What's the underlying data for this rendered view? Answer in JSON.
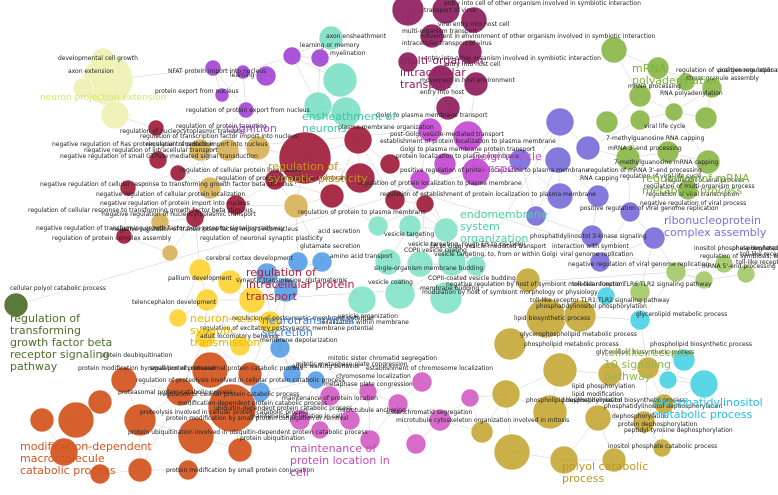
{
  "palette": {
    "edge": "#b9b9b9",
    "dev_growth": "#eef3b4",
    "cognition": "#a347d6",
    "plasticity": "#d9b25a",
    "intracellular": "#a01e3a",
    "multiorganism": "#8e1e5e",
    "ensheathment": "#7fe0c6",
    "golgi": "#c44ad2",
    "endomembrane": "#86e4c8",
    "mrna": "#8cb84a",
    "rnp": "#7a6fdc",
    "tgf": "#4e6e2a",
    "neuron": "#ffd335",
    "secretion": "#5aa0e8",
    "tlr": "#a4c96a",
    "catabolic": "#d3541e",
    "localization": "#d35fc5",
    "lipid": "#c7a93a",
    "pi": "#4ed3e6"
  },
  "clusters": [
    {
      "id": "dev-growth",
      "label": "neuron projection extension",
      "color": "#d9e36a"
    },
    {
      "id": "cognition",
      "label": "cognition",
      "color": "#a347d6"
    },
    {
      "id": "plasticity",
      "label": "regulation of synaptic plasticity",
      "color": "#c9921b"
    },
    {
      "id": "intracellular",
      "label": "regulation of intracellular protein transport",
      "color": "#b11b3a"
    },
    {
      "id": "ensheathment",
      "label": "ensheathment of neurons",
      "color": "#39c9a4"
    },
    {
      "id": "multiorganism",
      "label": "multi-organism intracellular transport",
      "color": "#8e1e5e"
    },
    {
      "id": "golgi",
      "label": "Golgi vesicle transport",
      "color": "#c44ad2"
    },
    {
      "id": "endomembrane",
      "label": "endomembrane system organization",
      "color": "#4ccfa6"
    },
    {
      "id": "mrna-polyadenylation",
      "label": "mRNA polyadenylation",
      "color": "#7ab33a"
    },
    {
      "id": "mrna-metabolic",
      "label": "regulation of mRNA metabolic process",
      "color": "#7ab33a"
    },
    {
      "id": "rnp",
      "label": "ribonucleoprotein complex assembly",
      "color": "#7a6fdc"
    },
    {
      "id": "tgf",
      "label": "regulation of transforming growth factor beta receptor signaling pathway",
      "color": "#4e6e2a"
    },
    {
      "id": "neuron-neuron",
      "label": "neuron-neuron synaptic transmission",
      "color": "#e7b800"
    },
    {
      "id": "secretion",
      "label": "neurotransmitter secretion",
      "color": "#3b7fd6"
    },
    {
      "id": "tlr",
      "label": "toll-like receptor 10 signaling pathway",
      "color": "#8fb94a"
    },
    {
      "id": "pi",
      "label": "phosphatidylinositol metabolic process",
      "color": "#1fbedc"
    },
    {
      "id": "catabolic",
      "label": "modification-dependent macromolecule catabolic process",
      "color": "#d3541e"
    },
    {
      "id": "localization",
      "label": "maintenance of protein location in cell",
      "color": "#c44ab8"
    },
    {
      "id": "polyol",
      "label": "polyol catabolic process",
      "color": "#b99a1e"
    }
  ],
  "node_labels": [
    "developmental cell growth",
    "axon extension",
    "NFAT protein import into nucleus",
    "protein export from nucleus",
    "learning",
    "learning or memory",
    "axon ensheathment",
    "myelination",
    "transport of virus",
    "entry into cell of other organism involved in symbiotic interaction",
    "viral entry into host cell",
    "multi-organism transport",
    "movement in environment of other organism involved in symbiotic interaction",
    "intracellular transport of virus",
    "entry into other organism involved in symbiotic interaction",
    "entry into host cell",
    "movement in host environment",
    "entry into host",
    "Golgi to plasma membrane transport",
    "plasma membrane organization",
    "post-Golgi vesicle-mediated transport",
    "Golgi to plasma membrane protein transport",
    "establishment of protein localization to plasma membrane",
    "protein localization to plasma membrane",
    "regulation of protein localization to plasma membrane",
    "positive regulation of protein localization to plasma membrane",
    "regulation of establishment of protein localization to plasma membrane",
    "regulation of protein export from nucleus",
    "regulation of nucleocytoplasmic transport",
    "regulation of transcription factor import into nucleus",
    "negative regulation of Ras protein signal transduction",
    "negative regulation of intracellular transport",
    "negative regulation of small GTPase mediated signal transduction",
    "regulation of protein import into nucleus",
    "regulation of protein targeting",
    "regulation of cellular protein localization",
    "negative regulation of cellular response to transforming growth factor beta stimulus",
    "negative regulation of cellular protein localization",
    "negative regulation of protein import into nucleus",
    "negative regulation of nucleocytoplasmic transport",
    "negative regulation of transforming growth factor beta receptor signaling pathway",
    "regulation of protein complex assembly",
    "negative regulation of transcription factor import into nucleus",
    "regulation of protein targeting to membrane",
    "regulation of cellular response to transforming growth factor beta stimulus",
    "regulation of protein to plasma membrane",
    "cerebral cortex development",
    "regulation of neuronal synaptic plasticity",
    "acid secretion",
    "glutamate secretion",
    "amino acid transport",
    "pallium development",
    "synaptic transmission, glutamatergic",
    "telencephalon development",
    "regulation of postsynaptic membrane potential",
    "regulation of excitatory postsynaptic membrane potential",
    "adult locomotory behavior",
    "membrane depolarization",
    "adult walking behavior",
    "protein deubiquitination",
    "regulation of proteasomal protein catabolic process",
    "protein modification by small protein removal",
    "regulation of proteolysis involved in cellular protein catabolic process",
    "proteasomal protein catabolic process",
    "regulation of cellular protein catabolic process",
    "proteolysis involved in cellular protein catabolic process",
    "modification-dependent protein catabolic process",
    "ubiquitin-dependent protein catabolic process",
    "protein modification by small protein conjugation or removal",
    "protein ubiquitination",
    "protein ubiquitination involved in ubiquitin-dependent protein catabolic process",
    "protein modification by small protein conjugation",
    "mitotic sister chromatid segregation",
    "mitotic metaphase plate congression",
    "establishment of chromosome localization",
    "chromosome localization",
    "metaphase plate congression",
    "microtubule anchoring",
    "maintenance of protein location",
    "maintenance of location in cell",
    "sister chromatid segregation",
    "microtubule cytoskeleton organization involved in mitosis",
    "vesicle targeting",
    "vesicle targeting, rough ER to cis-Golgi",
    "ER to Golgi vesicle-mediated transport",
    "vesicle targeting, to, from or within Golgi",
    "COPII vesicle coating",
    "vesicle coating",
    "COPII-coated vesicle budding",
    "single-organism membrane budding",
    "membrane budding",
    "vesicle organization",
    "localization within membrane",
    "negative regulation by host of symbiont molecular function",
    "modulation by host of symbiont morphology or physiology",
    "phosphatidylinositol 3-kinase signaling",
    "interaction with symbiont",
    "viral genome replication",
    "negative regulation of viral genome replication",
    "positive regulation of viral genome replication",
    "regulation of viral genome replication",
    "stress granule assembly",
    "mRNA processing",
    "RNA polyadenylation",
    "mRNA 3'-end processing",
    "regulation of mRNA 3'-end processing",
    "RNA capping",
    "7-methylguanosine RNA capping",
    "7-methylguanosine mRNA capping",
    "viral life cycle",
    "regulation of viral life cycle",
    "regulation of multi-organism process",
    "regulation of viral transcription",
    "regulation of viral process",
    "negative regulation of viral process",
    "positive regulation of viral life cycle",
    "regulation of symbiosis, encompassing mutualism through parasitism",
    "mRNA 5'-end processing",
    "toll-like receptor 5 signaling pathway",
    "toll-like receptor 9 signaling pathway",
    "toll-like receptor TLR6:TLR2 signaling pathway",
    "toll-like receptor TLR1:TLR2 signaling pathway",
    "phosphatidylinositol phosphorylation",
    "lipid biosynthetic process",
    "glycerophospholipid metabolic process",
    "phospholipid metabolic process",
    "glycerolipid metabolic process",
    "phospholipid biosynthetic process",
    "glycerolipid biosynthetic process",
    "lipid phosphorylation",
    "lipid modification",
    "phosphatidylinositol biosynthetic process",
    "phospholipid dephosphorylation",
    "phosphatidylinositol dephosphorylation",
    "dephosphorylation",
    "peptidyl-tyrosine dephosphorylation",
    "protein dephosphorylation",
    "inositol phosphate catabolic process",
    "inositol phosphate dephosphorylation",
    "phosphorylated carbohydrate dephosphorylation",
    "cellular polyol catabolic process"
  ]
}
